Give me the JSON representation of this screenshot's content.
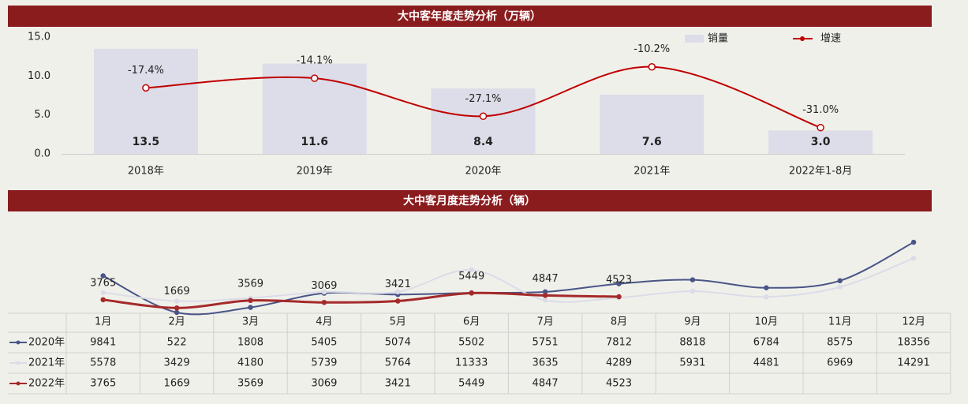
{
  "chart_data": [
    {
      "type": "bar",
      "title": "大中客年度走势分析（万辆）",
      "categories": [
        "2018年",
        "2019年",
        "2020年",
        "2021年",
        "2022年1-8月"
      ],
      "series": [
        {
          "name": "销量",
          "color": "#dcdde8",
          "values": [
            13.5,
            11.6,
            8.4,
            7.6,
            3.0
          ],
          "value_labels": [
            "13.5",
            "11.6",
            "8.4",
            "7.6",
            "3.0"
          ]
        },
        {
          "name": "增速",
          "type": "line",
          "axis": "y2",
          "color": "#c00000",
          "values": [
            -17.4,
            -14.1,
            -27.1,
            -10.2,
            -31.0
          ],
          "value_labels": [
            "-17.4%",
            "-14.1%",
            "-27.1%",
            "-10.2%",
            "-31.0%"
          ]
        }
      ],
      "ylim": [
        0,
        15
      ],
      "yticks": [
        {
          "value": 0,
          "label": "0.0"
        },
        {
          "value": 5,
          "label": "5.0"
        },
        {
          "value": 10,
          "label": "10.0"
        },
        {
          "value": 15,
          "label": "15.0"
        }
      ],
      "y2lim": [
        -40,
        0
      ],
      "grid": false,
      "legend": "top-right"
    },
    {
      "type": "line",
      "title": "大中客月度走势分析（辆）",
      "categories": [
        "1月",
        "2月",
        "3月",
        "4月",
        "5月",
        "6月",
        "7月",
        "8月",
        "9月",
        "10月",
        "11月",
        "12月"
      ],
      "series": [
        {
          "name": "2020年",
          "color": "#4a5587",
          "values": [
            9841,
            522,
            1808,
            5405,
            5074,
            5502,
            5751,
            7812,
            8818,
            6784,
            8575,
            18356
          ]
        },
        {
          "name": "2021年",
          "color": "#dcdce8",
          "values": [
            5578,
            3429,
            4180,
            5739,
            5764,
            11333,
            3635,
            4289,
            5931,
            4481,
            6969,
            14291
          ]
        },
        {
          "name": "2022年",
          "color": "#a52a2a",
          "show_labels": true,
          "values": [
            3765,
            1669,
            3569,
            3069,
            3421,
            5449,
            4847,
            4523,
            null,
            null,
            null,
            null
          ]
        }
      ],
      "ylim": [
        0,
        20000
      ],
      "grid": false,
      "data_table": true
    }
  ]
}
